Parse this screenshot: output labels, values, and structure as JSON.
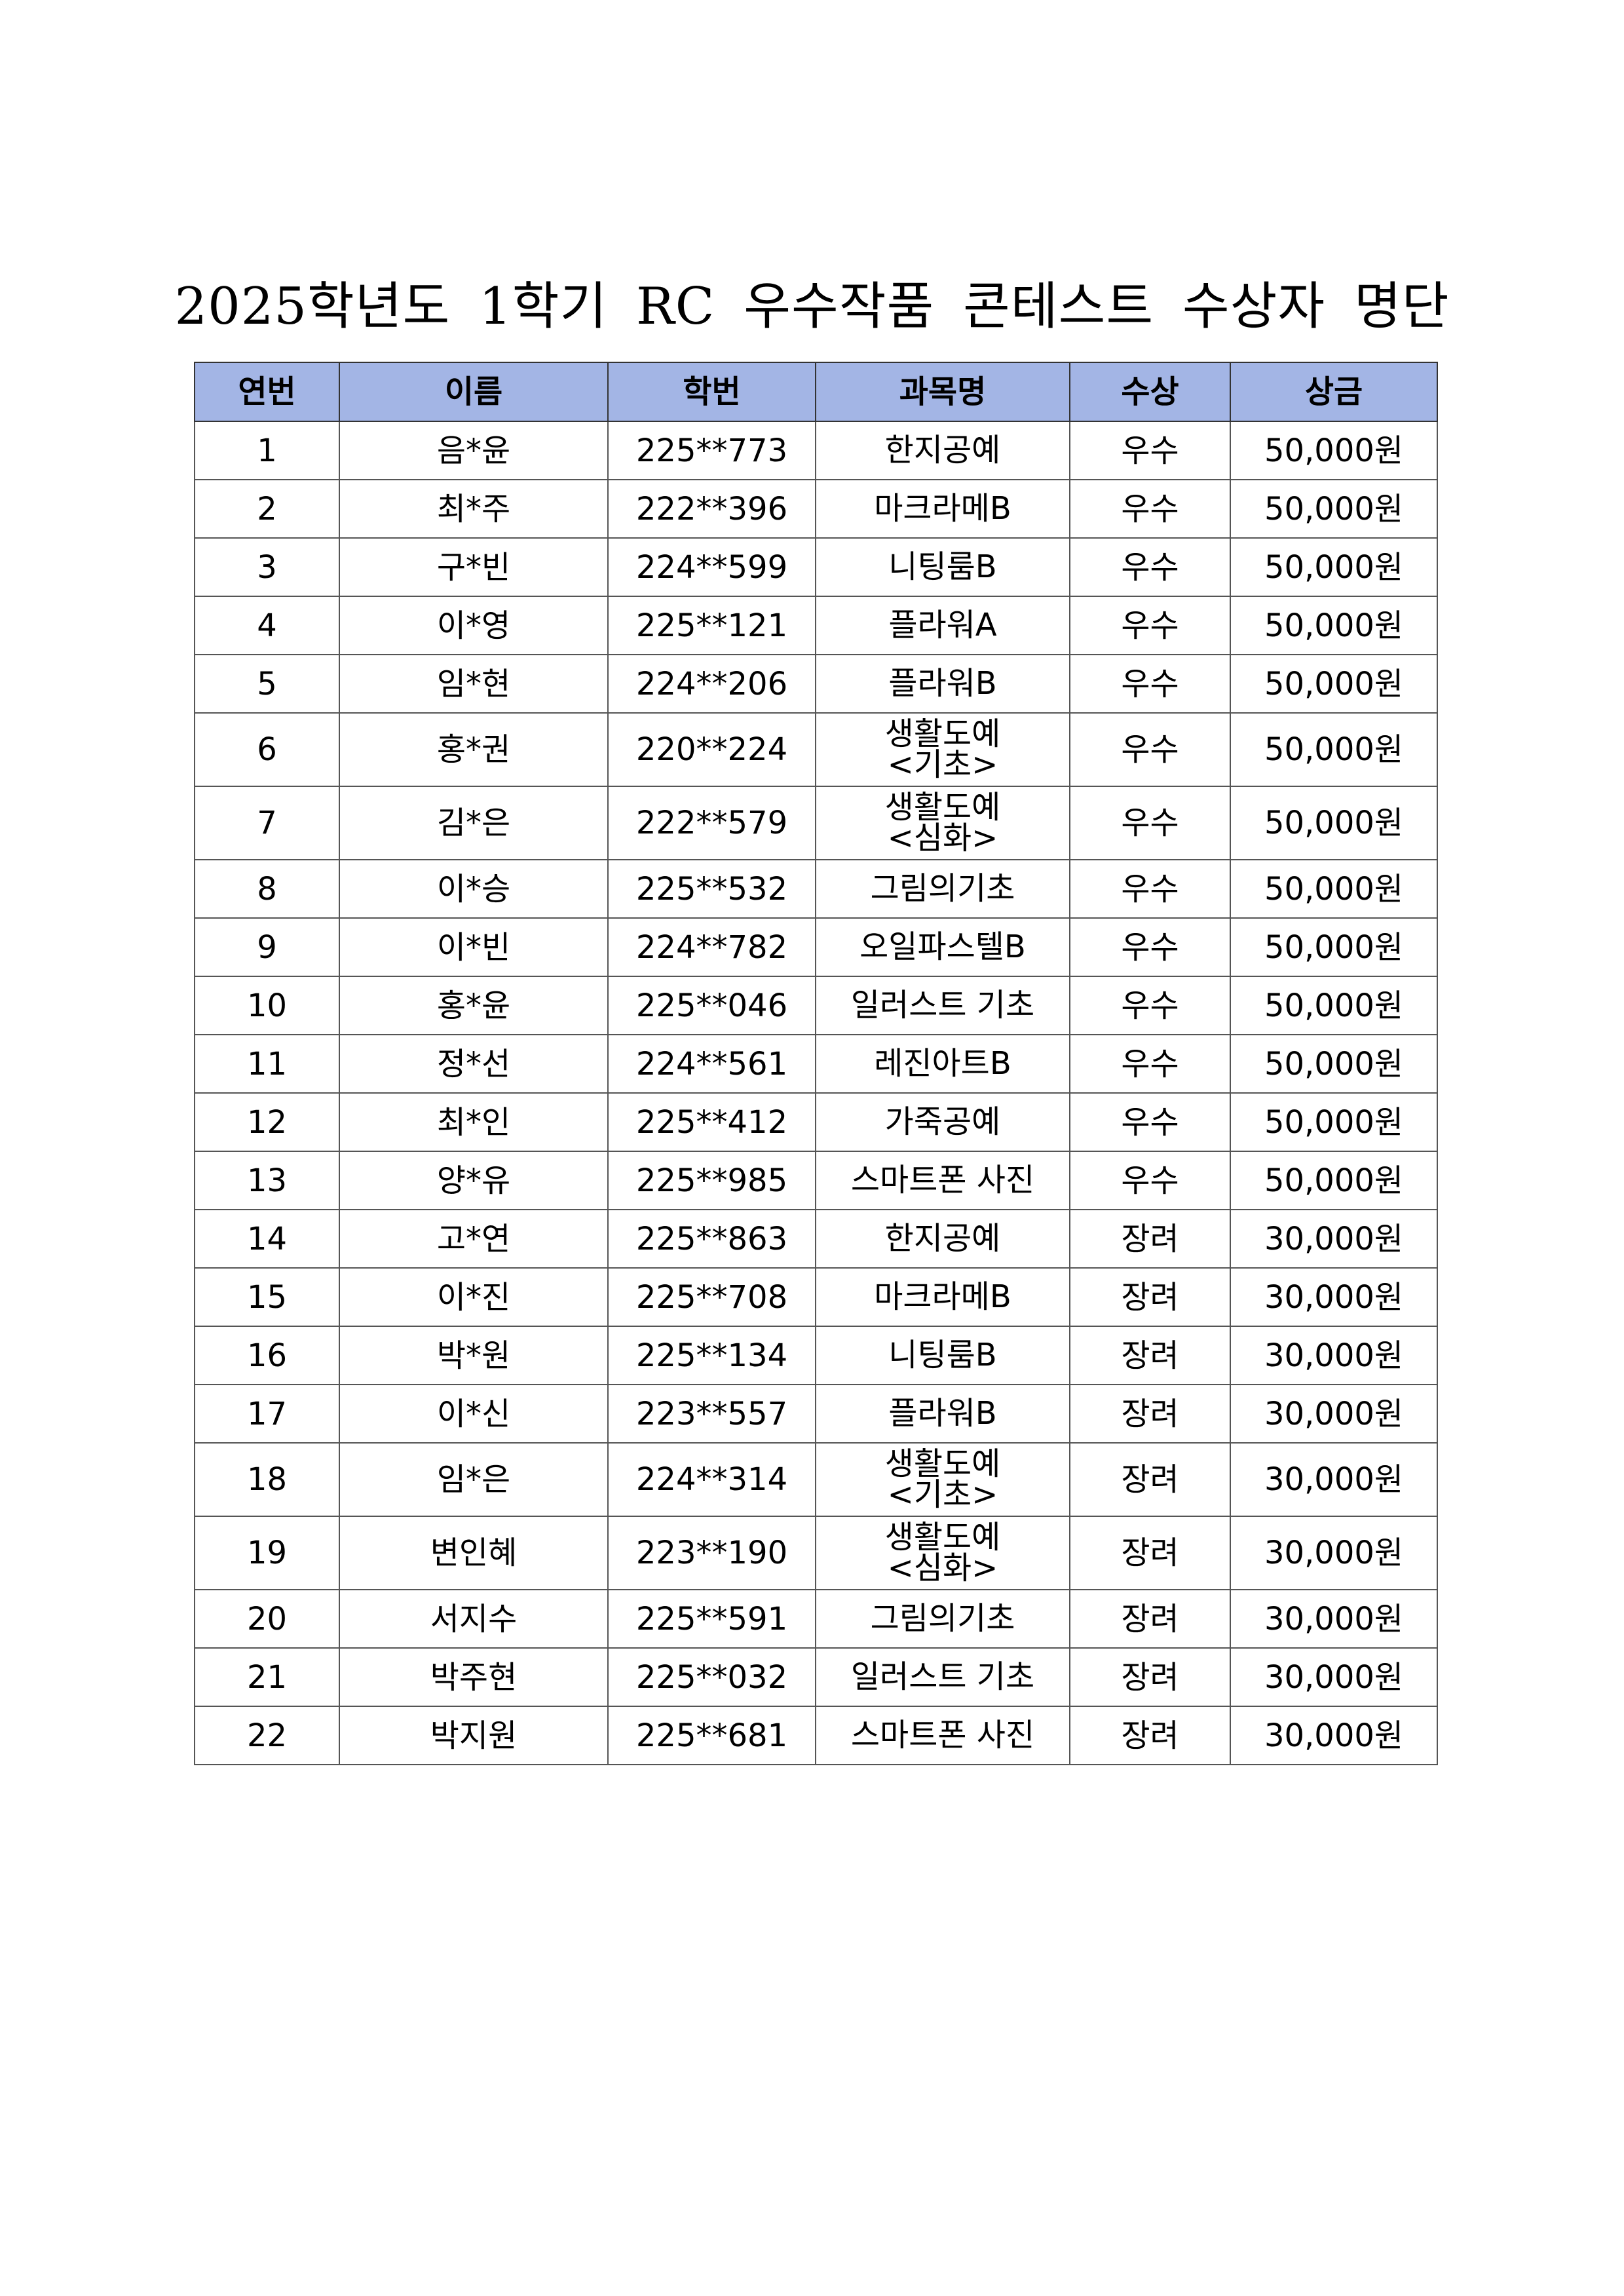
{
  "title": "2025학년도 1학기 RC 우수작품 콘테스트 수상자 명단",
  "header_color": "#a3b5e5",
  "columns": [
    "연번",
    "이름",
    "학번",
    "과목명",
    "수상",
    "상금"
  ],
  "rows": [
    {
      "no": "1",
      "name": "음*윤",
      "id": "225**773",
      "course": [
        "한지공예"
      ],
      "award": "우수",
      "prize": "50,000원"
    },
    {
      "no": "2",
      "name": "최*주",
      "id": "222**396",
      "course": [
        "마크라메B"
      ],
      "award": "우수",
      "prize": "50,000원"
    },
    {
      "no": "3",
      "name": "구*빈",
      "id": "224**599",
      "course": [
        "니팅룸B"
      ],
      "award": "우수",
      "prize": "50,000원"
    },
    {
      "no": "4",
      "name": "이*영",
      "id": "225**121",
      "course": [
        "플라워A"
      ],
      "award": "우수",
      "prize": "50,000원"
    },
    {
      "no": "5",
      "name": "임*현",
      "id": "224**206",
      "course": [
        "플라워B"
      ],
      "award": "우수",
      "prize": "50,000원"
    },
    {
      "no": "6",
      "name": "홍*권",
      "id": "220**224",
      "course": [
        "생활도예",
        "<기초>"
      ],
      "award": "우수",
      "prize": "50,000원"
    },
    {
      "no": "7",
      "name": "김*은",
      "id": "222**579",
      "course": [
        "생활도예",
        "<심화>"
      ],
      "award": "우수",
      "prize": "50,000원"
    },
    {
      "no": "8",
      "name": "이*승",
      "id": "225**532",
      "course": [
        "그림의기초"
      ],
      "award": "우수",
      "prize": "50,000원"
    },
    {
      "no": "9",
      "name": "이*빈",
      "id": "224**782",
      "course": [
        "오일파스텔B"
      ],
      "award": "우수",
      "prize": "50,000원"
    },
    {
      "no": "10",
      "name": "홍*윤",
      "id": "225**046",
      "course": [
        "일러스트 기초"
      ],
      "award": "우수",
      "prize": "50,000원"
    },
    {
      "no": "11",
      "name": "정*선",
      "id": "224**561",
      "course": [
        "레진아트B"
      ],
      "award": "우수",
      "prize": "50,000원"
    },
    {
      "no": "12",
      "name": "최*인",
      "id": "225**412",
      "course": [
        "가죽공예"
      ],
      "award": "우수",
      "prize": "50,000원"
    },
    {
      "no": "13",
      "name": "양*유",
      "id": "225**985",
      "course": [
        "스마트폰 사진"
      ],
      "award": "우수",
      "prize": "50,000원"
    },
    {
      "no": "14",
      "name": "고*연",
      "id": "225**863",
      "course": [
        "한지공예"
      ],
      "award": "장려",
      "prize": "30,000원"
    },
    {
      "no": "15",
      "name": "이*진",
      "id": "225**708",
      "course": [
        "마크라메B"
      ],
      "award": "장려",
      "prize": "30,000원"
    },
    {
      "no": "16",
      "name": "박*원",
      "id": "225**134",
      "course": [
        "니팅룸B"
      ],
      "award": "장려",
      "prize": "30,000원"
    },
    {
      "no": "17",
      "name": "이*신",
      "id": "223**557",
      "course": [
        "플라워B"
      ],
      "award": "장려",
      "prize": "30,000원"
    },
    {
      "no": "18",
      "name": "임*은",
      "id": "224**314",
      "course": [
        "생활도예",
        "<기초>"
      ],
      "award": "장려",
      "prize": "30,000원"
    },
    {
      "no": "19",
      "name": "변인혜",
      "id": "223**190",
      "course": [
        "생활도예",
        "<심화>"
      ],
      "award": "장려",
      "prize": "30,000원"
    },
    {
      "no": "20",
      "name": "서지수",
      "id": "225**591",
      "course": [
        "그림의기초"
      ],
      "award": "장려",
      "prize": "30,000원"
    },
    {
      "no": "21",
      "name": "박주현",
      "id": "225**032",
      "course": [
        "일러스트 기초"
      ],
      "award": "장려",
      "prize": "30,000원"
    },
    {
      "no": "22",
      "name": "박지원",
      "id": "225**681",
      "course": [
        "스마트폰 사진"
      ],
      "award": "장려",
      "prize": "30,000원"
    }
  ]
}
